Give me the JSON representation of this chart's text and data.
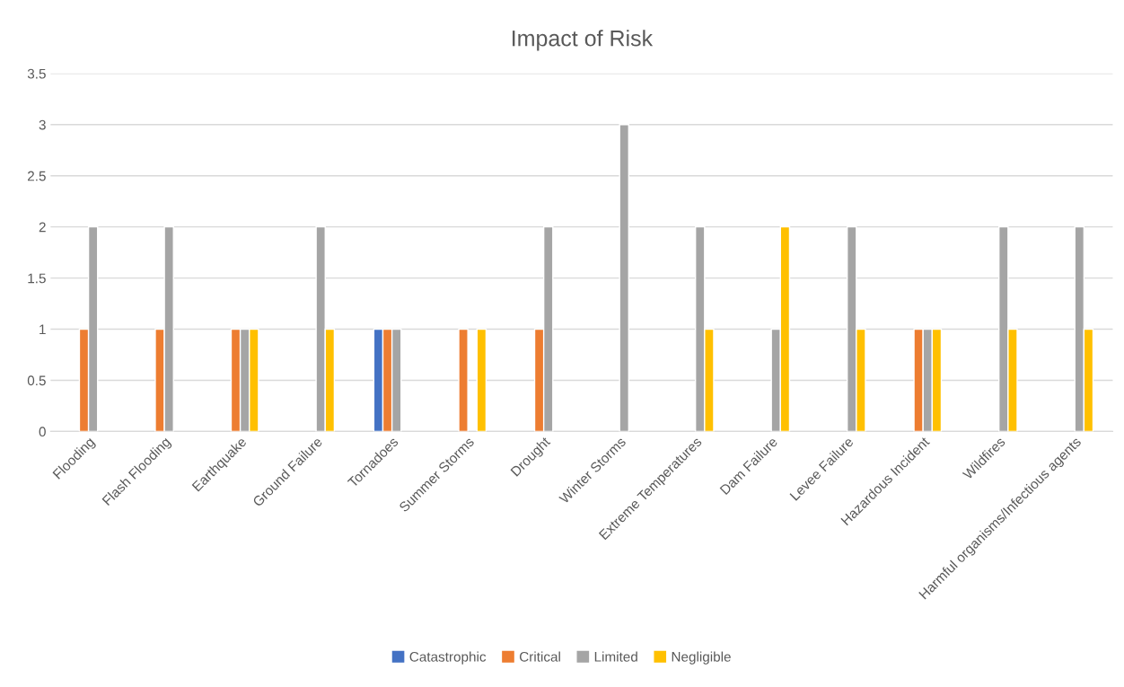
{
  "chart_data": {
    "type": "bar",
    "title": "Impact of Risk",
    "categories": [
      "Flooding",
      "Flash Flooding",
      "Earthquake",
      "Ground Failure",
      "Tornadoes",
      "Summer Storms",
      "Drought",
      "Winter Storms",
      "Extreme Temperatures",
      "Dam Failure",
      "Levee Failure",
      "Hazardous Incident",
      "Wildfires",
      "Harmful organisms/Infectious agents"
    ],
    "series": [
      {
        "name": "Catastrophic",
        "color": "#4472c4",
        "values": [
          null,
          null,
          null,
          null,
          1,
          null,
          null,
          null,
          null,
          null,
          null,
          null,
          null,
          null
        ]
      },
      {
        "name": "Critical",
        "color": "#ed7d31",
        "values": [
          1,
          1,
          1,
          null,
          1,
          1,
          1,
          null,
          null,
          null,
          null,
          1,
          null,
          null
        ]
      },
      {
        "name": "Limited",
        "color": "#a5a5a5",
        "values": [
          2,
          2,
          1,
          2,
          1,
          null,
          2,
          3,
          2,
          1,
          2,
          1,
          2,
          2
        ]
      },
      {
        "name": "Negligible",
        "color": "#ffc000",
        "values": [
          null,
          null,
          1,
          1,
          null,
          1,
          null,
          null,
          1,
          2,
          1,
          1,
          1,
          1
        ]
      }
    ],
    "ylim": [
      0,
      3.5
    ],
    "yticks": [
      0,
      0.5,
      1,
      1.5,
      2,
      2.5,
      3,
      3.5
    ],
    "grid": "y",
    "legend": "bottom"
  }
}
